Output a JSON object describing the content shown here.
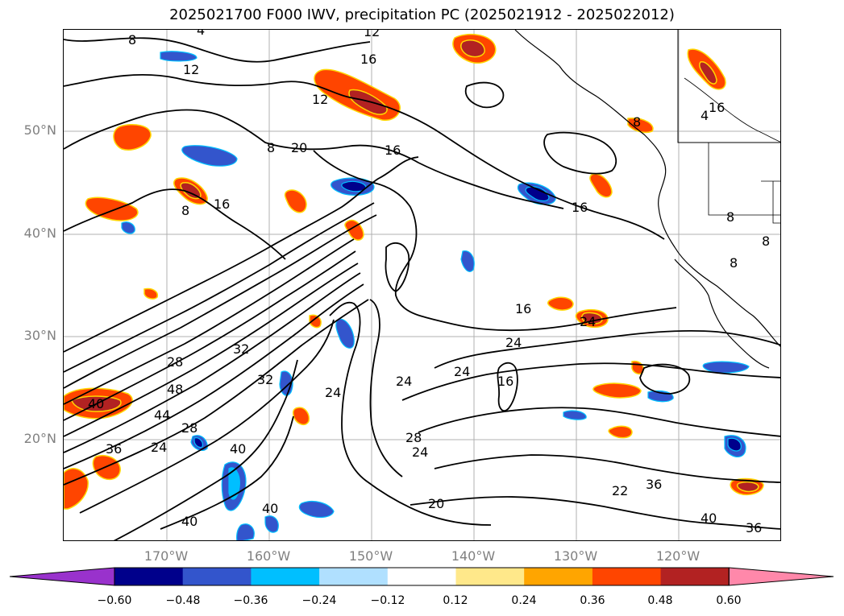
{
  "title": "2025021700 F000 IWV, precipitation PC (2025021912 - 2025022012)",
  "map": {
    "lat_labels": [
      "50°N",
      "40°N",
      "30°N",
      "20°N"
    ],
    "lon_labels": [
      "170°W",
      "160°W",
      "150°W",
      "140°W",
      "130°W",
      "120°W"
    ],
    "contour_labels": [
      "8",
      "4",
      "12",
      "12",
      "16",
      "12",
      "8",
      "20",
      "16",
      "8",
      "16",
      "8",
      "16",
      "16",
      "16",
      "24",
      "24",
      "24",
      "24",
      "16",
      "28",
      "48",
      "44",
      "28",
      "24",
      "36",
      "40",
      "32",
      "32",
      "40",
      "40",
      "24",
      "28",
      "24",
      "20",
      "22",
      "36",
      "40",
      "36",
      "40",
      "8",
      "8",
      "8",
      "4"
    ]
  },
  "colorbar": {
    "ticks": [
      "−0.60",
      "−0.48",
      "−0.36",
      "−0.24",
      "−0.12",
      "0.12",
      "0.24",
      "0.36",
      "0.48",
      "0.60"
    ],
    "colors": [
      "#9932cc",
      "#00008b",
      "#3355cc",
      "#00bfff",
      "#b0e0ff",
      "#ffffff",
      "#ffe88a",
      "#ffa500",
      "#ff4500",
      "#b22222",
      "#ff88aa"
    ]
  }
}
